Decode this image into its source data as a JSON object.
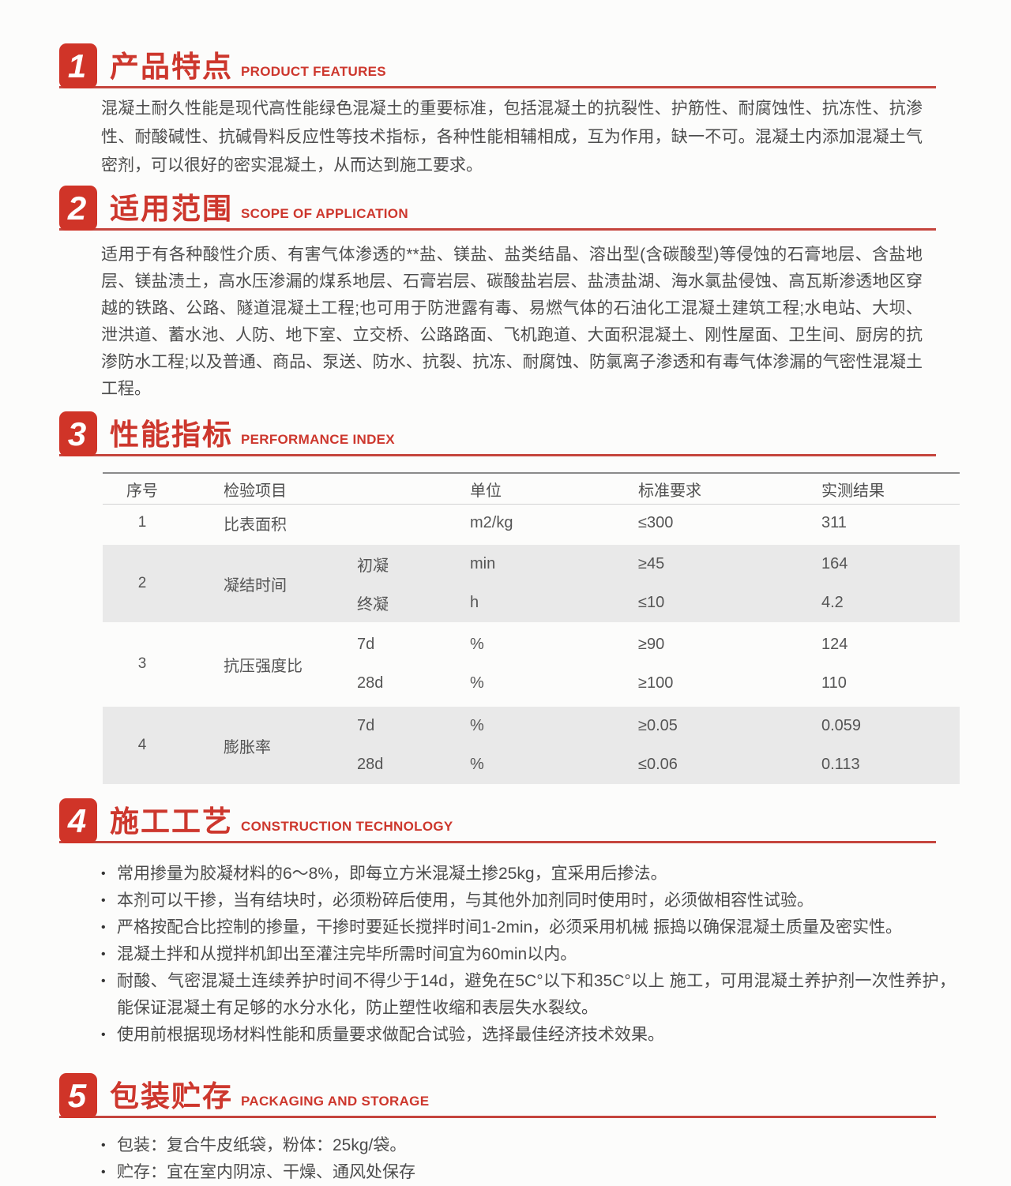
{
  "colors": {
    "accent_red": "#cd372d",
    "badge_red": "#d03428",
    "underline_red": "#c5453d",
    "body_text": "#4d4d4d",
    "table_stripe": "#e9e9e9"
  },
  "marker": "•",
  "sections": [
    {
      "number": "1",
      "title_zh": "产品特点",
      "title_en": "PRODUCT FEATURES",
      "paragraphs": [
        "混凝土耐久性能是现代高性能绿色混凝土的重要标准，包括混凝土的抗裂性、护筋性、耐腐蚀性、抗冻性、抗渗性、耐酸碱性、抗碱骨料反应性等技术指标，各种性能相辅相成，互为作用，缺一不可。混凝土内添加混凝土气密剂，可以很好的密实混凝土，从而达到施工要求。"
      ]
    },
    {
      "number": "2",
      "title_zh": "适用范围",
      "title_en": "SCOPE OF APPLICATION",
      "paragraphs": [
        "适用于有各种酸性介质、有害气体渗透的**盐、镁盐、盐类结晶、溶出型(含碳酸型)等侵蚀的石膏地层、含盐地层、镁盐渍土，高水压渗漏的煤系地层、石膏岩层、碳酸盐岩层、盐渍盐湖、海水氯盐侵蚀、高瓦斯渗透地区穿越的铁路、公路、隧道混凝土工程;也可用于防泄露有毒、易燃气体的石油化工混凝土建筑工程;水电站、大坝、泄洪道、蓄水池、人防、地下室、立交桥、公路路面、飞机跑道、大面积混凝土、刚性屋面、卫生间、厨房的抗渗防水工程;以及普通、商品、泵送、防水、抗裂、抗冻、耐腐蚀、防氯离子渗透和有毒气体渗漏的气密性混凝土工程。"
      ]
    },
    {
      "number": "3",
      "title_zh": "性能指标",
      "title_en": "PERFORMANCE INDEX",
      "table": {
        "headers": [
          "序号",
          "检验项目",
          "",
          "单位",
          "标准要求",
          "实测结果"
        ],
        "groups": [
          {
            "no": "1",
            "item": "比表面积",
            "striped": false,
            "rows": [
              {
                "sub": "",
                "unit": "m2/kg",
                "standard": "≤300",
                "result": "311"
              }
            ]
          },
          {
            "no": "2",
            "item": "凝结时间",
            "striped": true,
            "rows": [
              {
                "sub": "初凝",
                "unit": "min",
                "standard": "≥45",
                "result": "164"
              },
              {
                "sub": "终凝",
                "unit": "h",
                "standard": "≤10",
                "result": "4.2"
              }
            ]
          },
          {
            "no": "3",
            "item": "抗压强度比",
            "striped": false,
            "rows": [
              {
                "sub": "7d",
                "unit": "%",
                "standard": "≥90",
                "result": "124"
              },
              {
                "sub": "28d",
                "unit": "%",
                "standard": "≥100",
                "result": "110"
              }
            ]
          },
          {
            "no": "4",
            "item": "膨胀率",
            "striped": true,
            "rows": [
              {
                "sub": "7d",
                "unit": "%",
                "standard": "≥0.05",
                "result": "0.059"
              },
              {
                "sub": "28d",
                "unit": "%",
                "standard": "≤0.06",
                "result": "0.113"
              }
            ]
          }
        ]
      }
    },
    {
      "number": "4",
      "title_zh": "施工工艺",
      "title_en": "CONSTRUCTION TECHNOLOGY",
      "bullets": [
        "常用掺量为胶凝材料的6～8%，即每立方米混凝土掺25kg，宜采用后掺法。",
        "本剂可以干掺，当有结块时，必须粉碎后使用，与其他外加剂同时使用时，必须做相容性试验。",
        "严格按配合比控制的掺量，干掺时要延长搅拌时间1-2min，必须采用机械 振捣以确保混凝土质量及密实性。",
        "混凝土拌和从搅拌机卸出至灌注完毕所需时间宜为60min以内。",
        "耐酸、气密混凝土连续养护时间不得少于14d，避免在5C°以下和35C°以上 施工，可用混凝土养护剂一次性养护，能保证混凝土有足够的水分水化，防止塑性收缩和表层失水裂纹。",
        "使用前根据现场材料性能和质量要求做配合试验，选择最佳经济技术效果。"
      ]
    },
    {
      "number": "5",
      "title_zh": "包装贮存",
      "title_en": "PACKAGING AND STORAGE",
      "bullets": [
        "包装：复合牛皮纸袋，粉体：25kg/袋。",
        "贮存：宜在室内阴凉、干燥、通风处保存"
      ]
    }
  ]
}
